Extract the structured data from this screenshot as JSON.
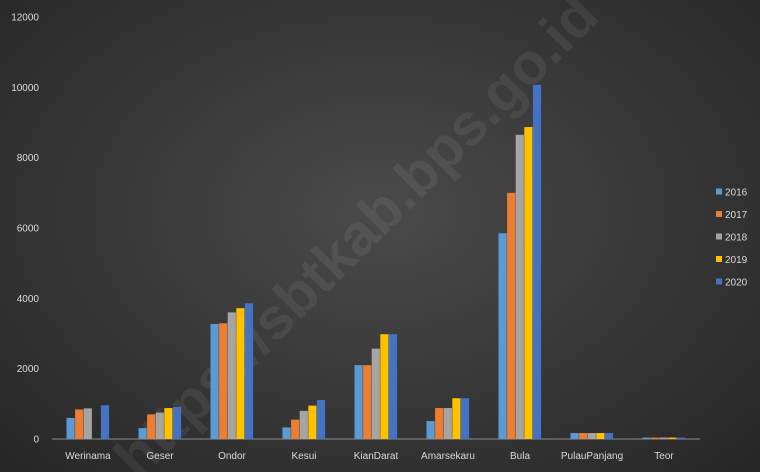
{
  "watermark": "https://sbtkab.bps.go.id",
  "chart_data": {
    "type": "bar",
    "categories": [
      "Werinama",
      "Geser",
      "Ondor",
      "Kesui",
      "KianDarat",
      "Amarsekaru",
      "Bula",
      "PulauPanjang",
      "Teor"
    ],
    "series": [
      {
        "name": "2016",
        "color": "#5b9bd5",
        "values": [
          600,
          310,
          3270,
          330,
          2100,
          510,
          5850,
          170,
          40
        ]
      },
      {
        "name": "2017",
        "color": "#ed7d31",
        "values": [
          840,
          700,
          3290,
          550,
          2100,
          880,
          7000,
          170,
          40
        ]
      },
      {
        "name": "2018",
        "color": "#a5a5a5",
        "values": [
          870,
          750,
          3600,
          800,
          2570,
          880,
          8650,
          170,
          40
        ]
      },
      {
        "name": "2019",
        "color": "#ffc000",
        "values": [
          0,
          880,
          3720,
          950,
          2980,
          1160,
          8870,
          170,
          40
        ]
      },
      {
        "name": "2020",
        "color": "#4472c4",
        "values": [
          960,
          910,
          3860,
          1110,
          2980,
          1160,
          10070,
          170,
          40
        ]
      }
    ],
    "ylim": [
      0,
      12000
    ],
    "yticks": [
      "0",
      "2000",
      "4000",
      "6000",
      "8000",
      "10000",
      "12000"
    ],
    "grid": false,
    "legend_position": "right",
    "title": "",
    "xlabel": "",
    "ylabel": ""
  }
}
